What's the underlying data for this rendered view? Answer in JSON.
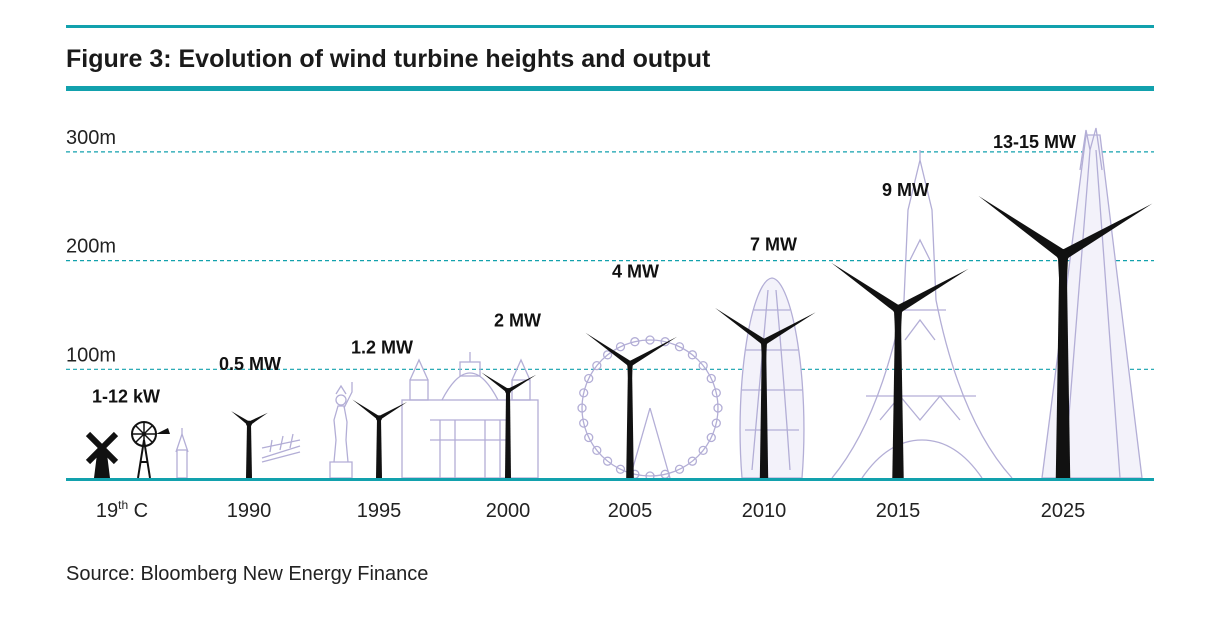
{
  "figure": {
    "title": "Figure 3: Evolution of wind turbine heights and output",
    "source": "Source: Bloomberg New Energy Finance",
    "accent_color": "#12a1ad",
    "turbine_color": "#111111",
    "landmark_color": "#b3aed6"
  },
  "chart_data": {
    "type": "bar",
    "title": "Figure 3: Evolution of wind turbine heights and output",
    "ylabel": "",
    "xlabel": "",
    "ylim": [
      0,
      300
    ],
    "y_ticks": [
      {
        "value": 100,
        "label": "100m"
      },
      {
        "value": 200,
        "label": "200m"
      },
      {
        "value": 300,
        "label": "300m"
      }
    ],
    "grid": true,
    "categories": [
      {
        "base": "19",
        "sup": "th",
        "rest": " C"
      },
      {
        "base": "1990",
        "sup": "",
        "rest": ""
      },
      {
        "base": "1995",
        "sup": "",
        "rest": ""
      },
      {
        "base": "2000",
        "sup": "",
        "rest": ""
      },
      {
        "base": "2005",
        "sup": "",
        "rest": ""
      },
      {
        "base": "2010",
        "sup": "",
        "rest": ""
      },
      {
        "base": "2015",
        "sup": "",
        "rest": ""
      },
      {
        "base": "2025",
        "sup": "",
        "rest": ""
      }
    ],
    "output_labels": [
      "1-12 kW",
      "0.5 MW",
      "1.2 MW",
      "2 MW",
      "4 MW",
      "7 MW",
      "9 MW",
      "13-15 MW"
    ],
    "hub_heights_m": [
      25,
      50,
      55,
      80,
      105,
      125,
      155,
      205
    ],
    "tip_heights_m": [
      40,
      70,
      85,
      110,
      155,
      180,
      230,
      300
    ]
  }
}
